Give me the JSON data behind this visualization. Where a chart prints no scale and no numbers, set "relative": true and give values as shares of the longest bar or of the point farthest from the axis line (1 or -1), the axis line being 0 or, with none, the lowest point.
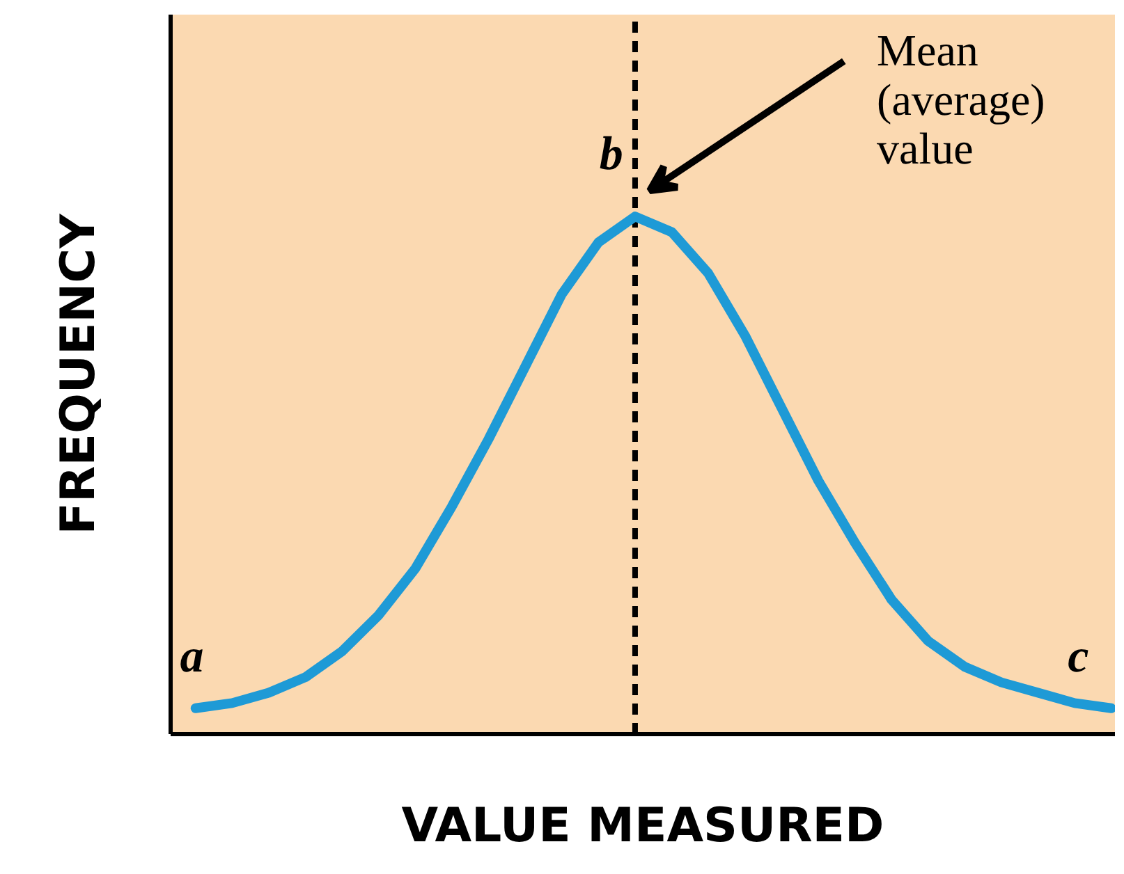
{
  "chart_data": {
    "type": "line",
    "relative": true,
    "xlabel": "VALUE MEASURED",
    "ylabel": "FREQUENCY",
    "categories": [
      null,
      null,
      null,
      null,
      null,
      null,
      null,
      null,
      null,
      null,
      null,
      null,
      null,
      null,
      null,
      null,
      null,
      null,
      null,
      null,
      null,
      null,
      null,
      null,
      null,
      null
    ],
    "series": [
      {
        "color": "#1e9ad6",
        "values": [
          0.05,
          0.06,
          0.08,
          0.11,
          0.16,
          0.23,
          0.32,
          0.44,
          0.57,
          0.71,
          0.85,
          0.95,
          1.0,
          0.97,
          0.89,
          0.77,
          0.63,
          0.49,
          0.37,
          0.26,
          0.18,
          0.13,
          0.1,
          0.08,
          0.06,
          0.05
        ]
      }
    ],
    "annotations": [
      "Mean (average) value",
      "a",
      "b",
      "c"
    ],
    "grid": false,
    "marker": "none",
    "line_style": "solid"
  }
}
